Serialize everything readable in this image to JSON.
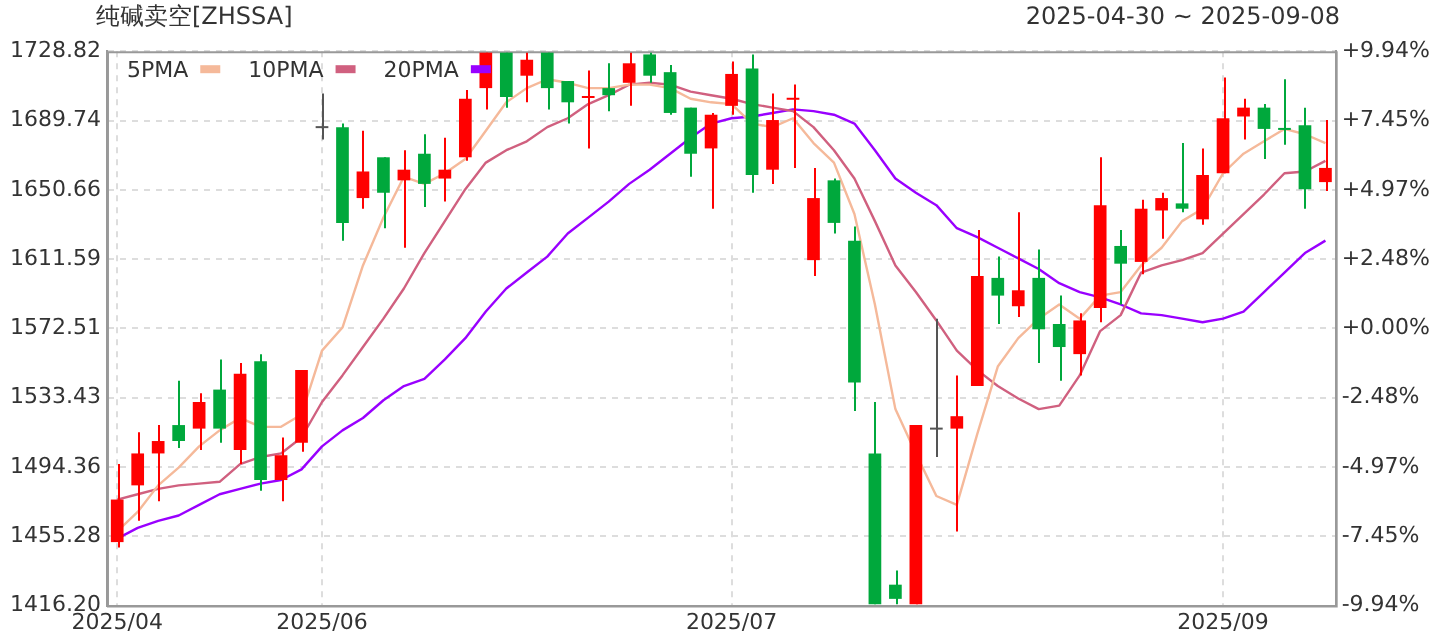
{
  "chart_data": {
    "type": "candlestick",
    "title": "纯碱卖空[ZHSSA]",
    "subtitle": "2025-04-30 ~ 2025-09-08",
    "categories": [
      "2025/04",
      null,
      null,
      null,
      null,
      null,
      null,
      null,
      null,
      null,
      "2025/06",
      null,
      null,
      null,
      null,
      null,
      null,
      null,
      null,
      null,
      null,
      null,
      null,
      null,
      null,
      null,
      null,
      null,
      null,
      null,
      "2025/07",
      null,
      null,
      null,
      null,
      null,
      null,
      null,
      null,
      null,
      null,
      null,
      null,
      null,
      null,
      null,
      null,
      null,
      null,
      null,
      null,
      null,
      null,
      null,
      "2025/09",
      null,
      null,
      null,
      null,
      null
    ],
    "ohlc": [
      [
        1452,
        1496,
        1449,
        1476
      ],
      [
        1484,
        1514,
        1464,
        1502
      ],
      [
        1502,
        1518,
        1475,
        1509
      ],
      [
        1518,
        1543,
        1505,
        1509
      ],
      [
        1516,
        1536,
        1504,
        1531
      ],
      [
        1538,
        1555,
        1508,
        1516
      ],
      [
        1504,
        1553,
        1496,
        1547
      ],
      [
        1554,
        1558,
        1481,
        1487
      ],
      [
        1487,
        1511,
        1475,
        1501
      ],
      [
        1508,
        1549,
        1503,
        1549
      ],
      [
        1686,
        1705,
        1679,
        1686
      ],
      [
        1686,
        1688,
        1622,
        1632
      ],
      [
        1646,
        1684,
        1640,
        1661
      ],
      [
        1669,
        1669,
        1629,
        1649
      ],
      [
        1656,
        1673,
        1618,
        1662
      ],
      [
        1671,
        1682,
        1641,
        1654
      ],
      [
        1657,
        1680,
        1644,
        1662
      ],
      [
        1669,
        1707,
        1667,
        1702
      ],
      [
        1708,
        1728,
        1696,
        1728
      ],
      [
        1728,
        1728,
        1697,
        1703
      ],
      [
        1715,
        1728,
        1700,
        1724
      ],
      [
        1728,
        1728,
        1696,
        1708
      ],
      [
        1712,
        1712,
        1688,
        1700
      ],
      [
        1703,
        1718,
        1674,
        1703
      ],
      [
        1708,
        1722,
        1695,
        1704
      ],
      [
        1711,
        1728,
        1698,
        1722
      ],
      [
        1727,
        1728,
        1711,
        1715
      ],
      [
        1717,
        1721,
        1693,
        1694
      ],
      [
        1697,
        1697,
        1658,
        1671
      ],
      [
        1674,
        1694,
        1640,
        1693
      ],
      [
        1698,
        1723,
        1693,
        1716
      ],
      [
        1719,
        1727,
        1649,
        1659
      ],
      [
        1662,
        1705,
        1654,
        1690
      ],
      [
        1702,
        1710,
        1663,
        1702
      ],
      [
        1611,
        1663,
        1602,
        1646
      ],
      [
        1656,
        1657,
        1626,
        1632
      ],
      [
        1622,
        1630,
        1526,
        1542
      ],
      [
        1502,
        1531,
        1417,
        1417
      ],
      [
        1428,
        1436,
        1417,
        1420
      ],
      [
        1417,
        1518,
        1417,
        1518
      ],
      [
        1516,
        1578,
        1500,
        1516
      ],
      [
        1516,
        1546,
        1458,
        1523
      ],
      [
        1540,
        1628,
        1540,
        1602
      ],
      [
        1601,
        1613,
        1575,
        1591
      ],
      [
        1585,
        1638,
        1579,
        1594
      ],
      [
        1601,
        1617,
        1553,
        1572
      ],
      [
        1575,
        1591,
        1543,
        1562
      ],
      [
        1558,
        1581,
        1546,
        1577
      ],
      [
        1584,
        1669,
        1576,
        1642
      ],
      [
        1619,
        1628,
        1586,
        1609
      ],
      [
        1610,
        1645,
        1603,
        1640
      ],
      [
        1639,
        1649,
        1623,
        1646
      ],
      [
        1643,
        1677,
        1638,
        1640
      ],
      [
        1634,
        1674,
        1631,
        1659
      ],
      [
        1660,
        1714,
        1660,
        1691
      ],
      [
        1692,
        1702,
        1679,
        1697
      ],
      [
        1697,
        1699,
        1668,
        1685
      ],
      [
        1685,
        1713,
        1676,
        1685
      ],
      [
        1687,
        1697,
        1640,
        1651
      ],
      [
        1655,
        1690,
        1650,
        1663
      ]
    ],
    "colors": [
      "#ff0000",
      "#ff0000",
      "#ff0000",
      "#00a83c",
      "#ff0000",
      "#00a83c",
      "#ff0000",
      "#00a83c",
      "#ff0000",
      "#ff0000",
      "#555555",
      "#00a83c",
      "#ff0000",
      "#00a83c",
      "#ff0000",
      "#00a83c",
      "#ff0000",
      "#ff0000",
      "#ff0000",
      "#00a83c",
      "#ff0000",
      "#00a83c",
      "#00a83c",
      "#ff0000",
      "#00a83c",
      "#ff0000",
      "#00a83c",
      "#00a83c",
      "#00a83c",
      "#ff0000",
      "#ff0000",
      "#00a83c",
      "#ff0000",
      "#ff0000",
      "#ff0000",
      "#00a83c",
      "#00a83c",
      "#00a83c",
      "#00a83c",
      "#ff0000",
      "#555555",
      "#ff0000",
      "#ff0000",
      "#00a83c",
      "#ff0000",
      "#00a83c",
      "#00a83c",
      "#ff0000",
      "#ff0000",
      "#00a83c",
      "#ff0000",
      "#ff0000",
      "#00a83c",
      "#ff0000",
      "#ff0000",
      "#ff0000",
      "#00a83c",
      "#00a83c",
      "#00a83c",
      "#ff0000"
    ],
    "series": [
      {
        "type": "line",
        "name": "5PMA",
        "color": "#f5b99a",
        "values": [
          1458,
          1469,
          1484,
          1494,
          1506,
          1515,
          1522,
          1517,
          1517,
          1524,
          1560,
          1573,
          1608,
          1635,
          1658,
          1654,
          1660,
          1668,
          1684,
          1700,
          1708,
          1713,
          1711,
          1708,
          1708,
          1710,
          1710,
          1708,
          1702,
          1700,
          1699,
          1688,
          1686,
          1691,
          1677,
          1666,
          1637,
          1586,
          1527,
          1502,
          1478,
          1473,
          1513,
          1551,
          1567,
          1578,
          1586,
          1578,
          1591,
          1593,
          1608,
          1618,
          1633,
          1640,
          1660,
          1671,
          1678,
          1685,
          1682,
          1677
        ]
      },
      {
        "type": "line",
        "name": "10PMA",
        "color": "#d0607f",
        "values": [
          1476,
          1479,
          1482,
          1484,
          1485,
          1486,
          1496,
          1500,
          1502,
          1511,
          1531,
          1546,
          1562,
          1578,
          1595,
          1615,
          1633,
          1651,
          1666,
          1673,
          1678,
          1686,
          1691,
          1699,
          1704,
          1710,
          1711,
          1710,
          1706,
          1704,
          1702,
          1699,
          1697,
          1695,
          1686,
          1673,
          1657,
          1633,
          1608,
          1593,
          1577,
          1560,
          1549,
          1540,
          1533,
          1527,
          1529,
          1546,
          1571,
          1580,
          1604,
          1608,
          1611,
          1615,
          1626,
          1637,
          1648,
          1660,
          1661,
          1667
        ]
      },
      {
        "type": "line",
        "name": "20PMA",
        "color": "#9900ff",
        "values": [
          1454,
          1460,
          1464,
          1467,
          1473,
          1479,
          1482,
          1485,
          1487,
          1493,
          1506,
          1515,
          1522,
          1532,
          1540,
          1544,
          1555,
          1567,
          1582,
          1595,
          1604,
          1613,
          1626,
          1635,
          1644,
          1654,
          1662,
          1671,
          1680,
          1688,
          1691,
          1692,
          1694,
          1696,
          1695,
          1693,
          1688,
          1673,
          1657,
          1649,
          1642,
          1629,
          1624,
          1618,
          1612,
          1606,
          1598,
          1593,
          1590,
          1586,
          1581,
          1580,
          1578,
          1576,
          1578,
          1582,
          1593,
          1604,
          1615,
          1622
        ]
      }
    ],
    "ylim": [
      1416.2,
      1728.82
    ],
    "yticks": [
      {
        "value": 1416.2,
        "label": "1416.20"
      },
      1455.28,
      1494.36,
      1533.43,
      1572.51,
      1611.59,
      1650.66,
      1689.74,
      1728.82
    ],
    "y2lim": [
      -9.94,
      9.94
    ],
    "y2ticks": [
      {
        "value": -9.94,
        "label": "-9.94%"
      },
      {
        "value": -7.45,
        "label": "-7.45%"
      },
      {
        "value": -4.97,
        "label": "-4.97%"
      },
      {
        "value": -2.48,
        "label": "-2.48%"
      },
      {
        "value": 0,
        "label": "+0.00%"
      },
      {
        "value": 2.48,
        "label": "+2.48%"
      },
      {
        "value": 4.97,
        "label": "+4.97%"
      },
      {
        "value": 7.45,
        "label": "+7.45%"
      },
      {
        "value": 9.94,
        "label": "+9.94%"
      }
    ],
    "grid": true,
    "legend": "top left"
  }
}
